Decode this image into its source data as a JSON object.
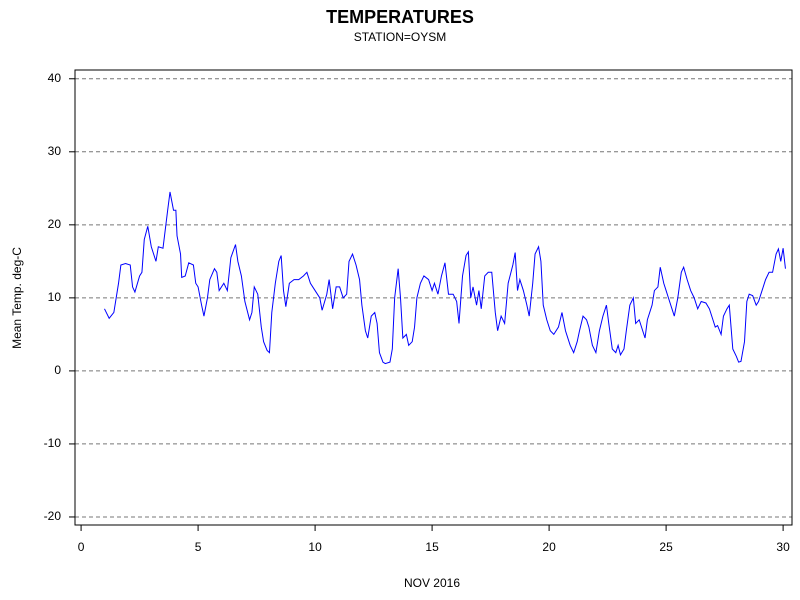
{
  "chart_data": {
    "type": "line",
    "title": "TEMPERATURES",
    "subtitle": "STATION=OYSM",
    "x_label": "NOV 2016",
    "y_label": "Mean Temp. deg-C",
    "xlim": [
      -0.26,
      30.38
    ],
    "xticks": [
      0,
      5,
      10,
      15,
      20,
      25,
      30
    ],
    "ylim": [
      -21.1,
      41.2
    ],
    "yticks": [
      -20,
      -10,
      0,
      10,
      20,
      30,
      40
    ],
    "grid": true,
    "series": [
      {
        "name": "Mean Temp.",
        "color": "#0000ff",
        "x": [
          1.0,
          1.2,
          1.4,
          1.6,
          1.7,
          1.9,
          2.1,
          2.2,
          2.3,
          2.5,
          2.6,
          2.7,
          2.85,
          3.0,
          3.2,
          3.3,
          3.5,
          3.7,
          3.8,
          3.95,
          4.05,
          4.1,
          4.25,
          4.3,
          4.45,
          4.6,
          4.8,
          4.9,
          5.0,
          5.15,
          5.25,
          5.4,
          5.5,
          5.7,
          5.8,
          5.9,
          6.1,
          6.25,
          6.4,
          6.6,
          6.7,
          6.85,
          7.0,
          7.2,
          7.3,
          7.4,
          7.55,
          7.7,
          7.8,
          7.95,
          8.05,
          8.15,
          8.3,
          8.45,
          8.55,
          8.65,
          8.75,
          8.9,
          9.1,
          9.3,
          9.5,
          9.65,
          9.8,
          10.0,
          10.2,
          10.3,
          10.5,
          10.6,
          10.75,
          10.9,
          11.05,
          11.2,
          11.35,
          11.45,
          11.6,
          11.75,
          11.9,
          12.0,
          12.15,
          12.25,
          12.4,
          12.55,
          12.65,
          12.75,
          12.9,
          13.0,
          13.2,
          13.3,
          13.4,
          13.55,
          13.65,
          13.75,
          13.9,
          14.0,
          14.15,
          14.25,
          14.35,
          14.5,
          14.65,
          14.85,
          15.0,
          15.1,
          15.25,
          15.4,
          15.55,
          15.7,
          15.9,
          16.05,
          16.15,
          16.3,
          16.45,
          16.55,
          16.65,
          16.75,
          16.9,
          17.0,
          17.1,
          17.25,
          17.4,
          17.55,
          17.7,
          17.8,
          17.95,
          18.1,
          18.25,
          18.45,
          18.55,
          18.65,
          18.75,
          18.9,
          19.05,
          19.15,
          19.3,
          19.4,
          19.55,
          19.65,
          19.75,
          19.9,
          20.05,
          20.2,
          20.4,
          20.55,
          20.7,
          20.9,
          21.05,
          21.2,
          21.3,
          21.45,
          21.6,
          21.7,
          21.85,
          22.0,
          22.15,
          22.3,
          22.45,
          22.55,
          22.7,
          22.85,
          22.95,
          23.05,
          23.2,
          23.3,
          23.45,
          23.6,
          23.7,
          23.85,
          24.0,
          24.1,
          24.2,
          24.4,
          24.5,
          24.65,
          24.75,
          24.9,
          25.0,
          25.1,
          25.25,
          25.35,
          25.5,
          25.65,
          25.75,
          25.9,
          26.05,
          26.2,
          26.35,
          26.5,
          26.7,
          26.85,
          27.0,
          27.1,
          27.2,
          27.35,
          27.45,
          27.6,
          27.7,
          27.85,
          28.0,
          28.1,
          28.2,
          28.35,
          28.45,
          28.55,
          28.7,
          28.85,
          28.95,
          29.1,
          29.25,
          29.4,
          29.55,
          29.7,
          29.8,
          29.9,
          30.0,
          30.1
        ],
        "values": [
          8.5,
          7.2,
          8,
          12,
          14.5,
          14.7,
          14.5,
          11.5,
          10.8,
          13,
          13.5,
          18,
          19.8,
          17,
          15,
          17,
          16.8,
          22,
          24.5,
          22,
          22,
          18.5,
          16,
          12.8,
          13,
          14.8,
          14.5,
          12,
          11.5,
          9,
          7.5,
          10,
          12.5,
          14,
          13.5,
          11,
          12,
          11,
          15.5,
          17.3,
          15,
          13,
          9.5,
          7,
          8,
          11.5,
          10.5,
          6,
          4,
          2.8,
          2.5,
          8,
          12,
          15,
          15.8,
          11,
          8.8,
          12,
          12.5,
          12.5,
          13,
          13.5,
          12,
          11,
          10,
          8.3,
          10.5,
          12.5,
          8.5,
          11.5,
          11.5,
          10,
          10.5,
          15,
          16,
          14.5,
          12.5,
          9,
          5.5,
          4.5,
          7.5,
          8,
          6.5,
          2.5,
          1.2,
          1,
          1.2,
          3,
          10,
          14,
          10,
          4.5,
          5,
          3.5,
          4,
          6,
          10,
          12,
          13,
          12.5,
          11,
          12,
          10.5,
          13,
          14.8,
          10.5,
          10.5,
          9.5,
          6.5,
          13,
          15.8,
          16.3,
          10,
          11.5,
          9,
          11,
          8.5,
          13,
          13.5,
          13.5,
          8,
          5.5,
          7.5,
          6.5,
          12,
          14.5,
          16.2,
          11,
          12.5,
          11,
          9,
          7.5,
          12,
          16,
          17,
          15,
          9,
          7,
          5.5,
          5,
          6,
          8,
          5.5,
          3.5,
          2.5,
          4,
          5.5,
          7.5,
          7,
          6,
          3.5,
          2.5,
          5.5,
          7.5,
          9,
          6.5,
          3,
          2.5,
          3.5,
          2.2,
          3,
          5.5,
          9,
          10,
          6.5,
          7,
          5.5,
          4.5,
          7,
          9,
          11,
          11.5,
          14.2,
          12,
          11,
          10,
          8.5,
          7.5,
          10,
          13.5,
          14.2,
          12.5,
          11,
          10,
          8.5,
          9.5,
          9.3,
          8.5,
          7,
          6,
          6.2,
          5,
          7.5,
          8.5,
          9,
          3,
          2,
          1.2,
          1.3,
          4,
          9.5,
          10.5,
          10.3,
          9,
          9.5,
          11,
          12.5,
          13.5,
          13.5,
          16,
          16.7,
          15,
          16.8,
          14
        ]
      }
    ]
  }
}
